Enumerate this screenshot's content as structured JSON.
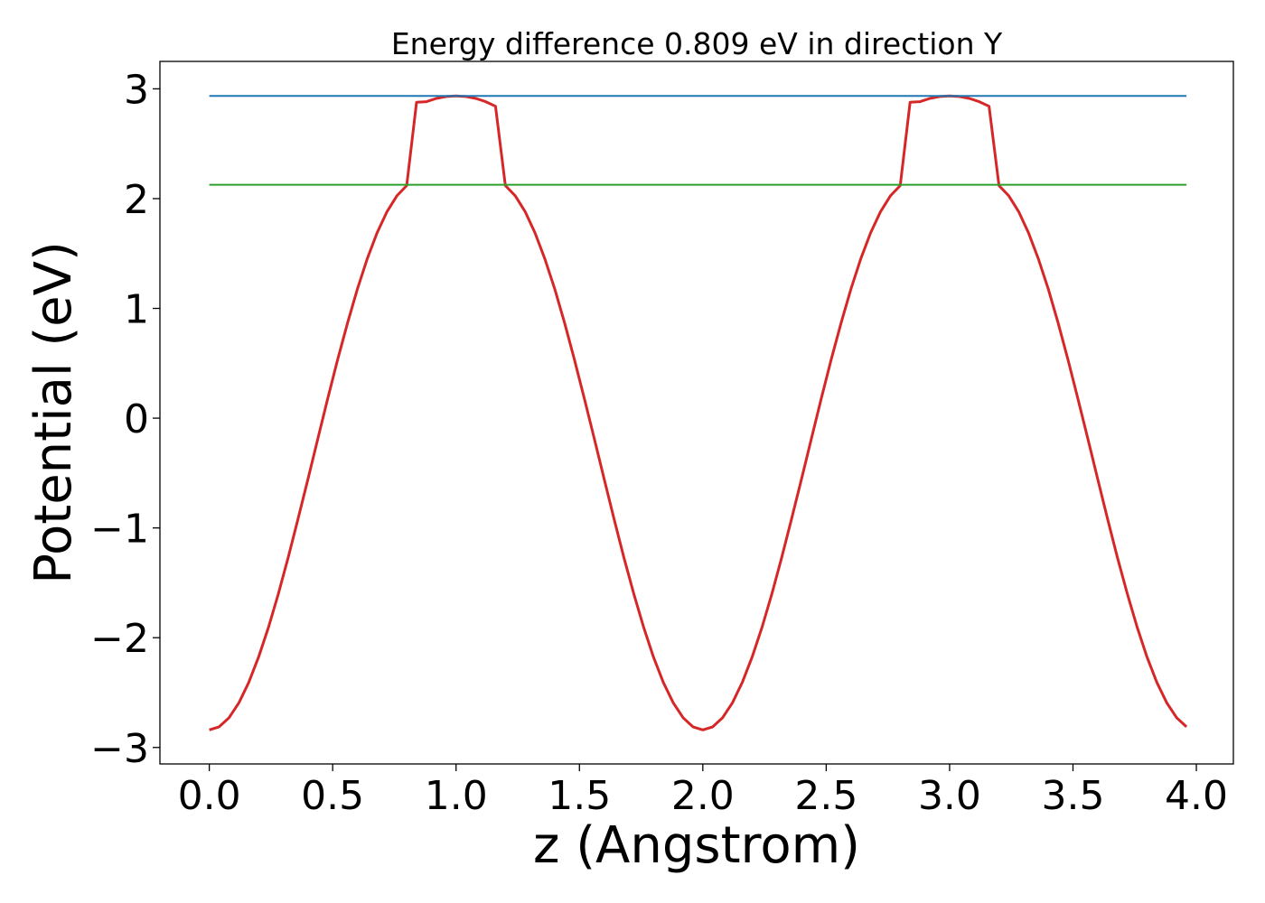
{
  "chart_data": {
    "type": "line",
    "title": "Energy difference 0.809 eV in direction Y",
    "xlabel": "z (Angstrom)",
    "ylabel": "Potential (eV)",
    "xlim": [
      -0.2,
      4.15
    ],
    "ylim": [
      -3.15,
      3.25
    ],
    "x_ticks": [
      0.0,
      0.5,
      1.0,
      1.5,
      2.0,
      2.5,
      3.0,
      3.5,
      4.0
    ],
    "x_tick_labels": [
      "0.0",
      "0.5",
      "1.0",
      "1.5",
      "2.0",
      "2.5",
      "3.0",
      "3.5",
      "4.0"
    ],
    "y_ticks": [
      -3,
      -2,
      -1,
      0,
      1,
      2,
      3
    ],
    "y_tick_labels": [
      "−3",
      "−2",
      "−1",
      "0",
      "1",
      "2",
      "3"
    ],
    "grid": false,
    "legend": "none",
    "series": [
      {
        "color": "#d62728",
        "x": [
          0.0,
          0.04,
          0.08,
          0.12,
          0.16,
          0.2,
          0.24,
          0.28,
          0.32,
          0.36,
          0.4,
          0.44,
          0.48,
          0.52,
          0.56,
          0.6,
          0.64,
          0.68,
          0.72,
          0.76,
          0.8,
          0.84,
          0.88,
          0.92,
          0.96,
          1.0,
          1.04,
          1.08,
          1.12,
          1.16,
          1.2,
          1.24,
          1.28,
          1.32,
          1.36,
          1.4,
          1.44,
          1.48,
          1.52,
          1.56,
          1.6,
          1.64,
          1.68,
          1.72,
          1.76,
          1.8,
          1.84,
          1.88,
          1.92,
          1.96,
          2.0,
          2.04,
          2.08,
          2.12,
          2.16,
          2.2,
          2.24,
          2.28,
          2.32,
          2.36,
          2.4,
          2.44,
          2.48,
          2.52,
          2.56,
          2.6,
          2.64,
          2.68,
          2.72,
          2.76,
          2.8,
          2.84,
          2.88,
          2.92,
          2.96,
          3.0,
          3.04,
          3.08,
          3.12,
          3.16,
          3.2,
          3.24,
          3.28,
          3.32,
          3.36,
          3.4,
          3.44,
          3.48,
          3.52,
          3.56,
          3.6,
          3.64,
          3.68,
          3.72,
          3.76,
          3.8,
          3.84,
          3.88,
          3.92,
          3.96
        ],
        "y": [
          -2.84,
          -2.812,
          -2.729,
          -2.593,
          -2.407,
          -2.176,
          -1.904,
          -1.599,
          -1.267,
          -0.916,
          -0.553,
          -0.186,
          0.178,
          0.531,
          0.866,
          1.175,
          1.451,
          1.688,
          1.881,
          2.025,
          2.119,
          2.877,
          2.883,
          2.913,
          2.93,
          2.935,
          2.93,
          2.913,
          2.883,
          2.841,
          2.119,
          2.025,
          1.881,
          1.688,
          1.451,
          1.175,
          0.866,
          0.531,
          0.178,
          -0.186,
          -0.553,
          -0.916,
          -1.267,
          -1.599,
          -1.904,
          -2.176,
          -2.407,
          -2.593,
          -2.729,
          -2.812,
          -2.84,
          -2.812,
          -2.729,
          -2.593,
          -2.407,
          -2.176,
          -1.904,
          -1.599,
          -1.267,
          -0.916,
          -0.553,
          -0.186,
          0.178,
          0.531,
          0.866,
          1.175,
          1.451,
          1.688,
          1.881,
          2.025,
          2.119,
          2.877,
          2.883,
          2.913,
          2.93,
          2.935,
          2.93,
          2.913,
          2.883,
          2.841,
          2.119,
          2.025,
          1.881,
          1.688,
          1.451,
          1.175,
          0.866,
          0.531,
          0.178,
          -0.186,
          -0.553,
          -0.916,
          -1.267,
          -1.599,
          -1.904,
          -2.176,
          -2.407,
          -2.593,
          -2.729,
          -2.812
        ]
      },
      {
        "color": "#1f77b4",
        "x": [
          0.0,
          3.96
        ],
        "y": [
          2.935,
          2.935
        ]
      },
      {
        "color": "#2ca02c",
        "x": [
          0.0,
          3.96
        ],
        "y": [
          2.126,
          2.126
        ]
      }
    ]
  }
}
